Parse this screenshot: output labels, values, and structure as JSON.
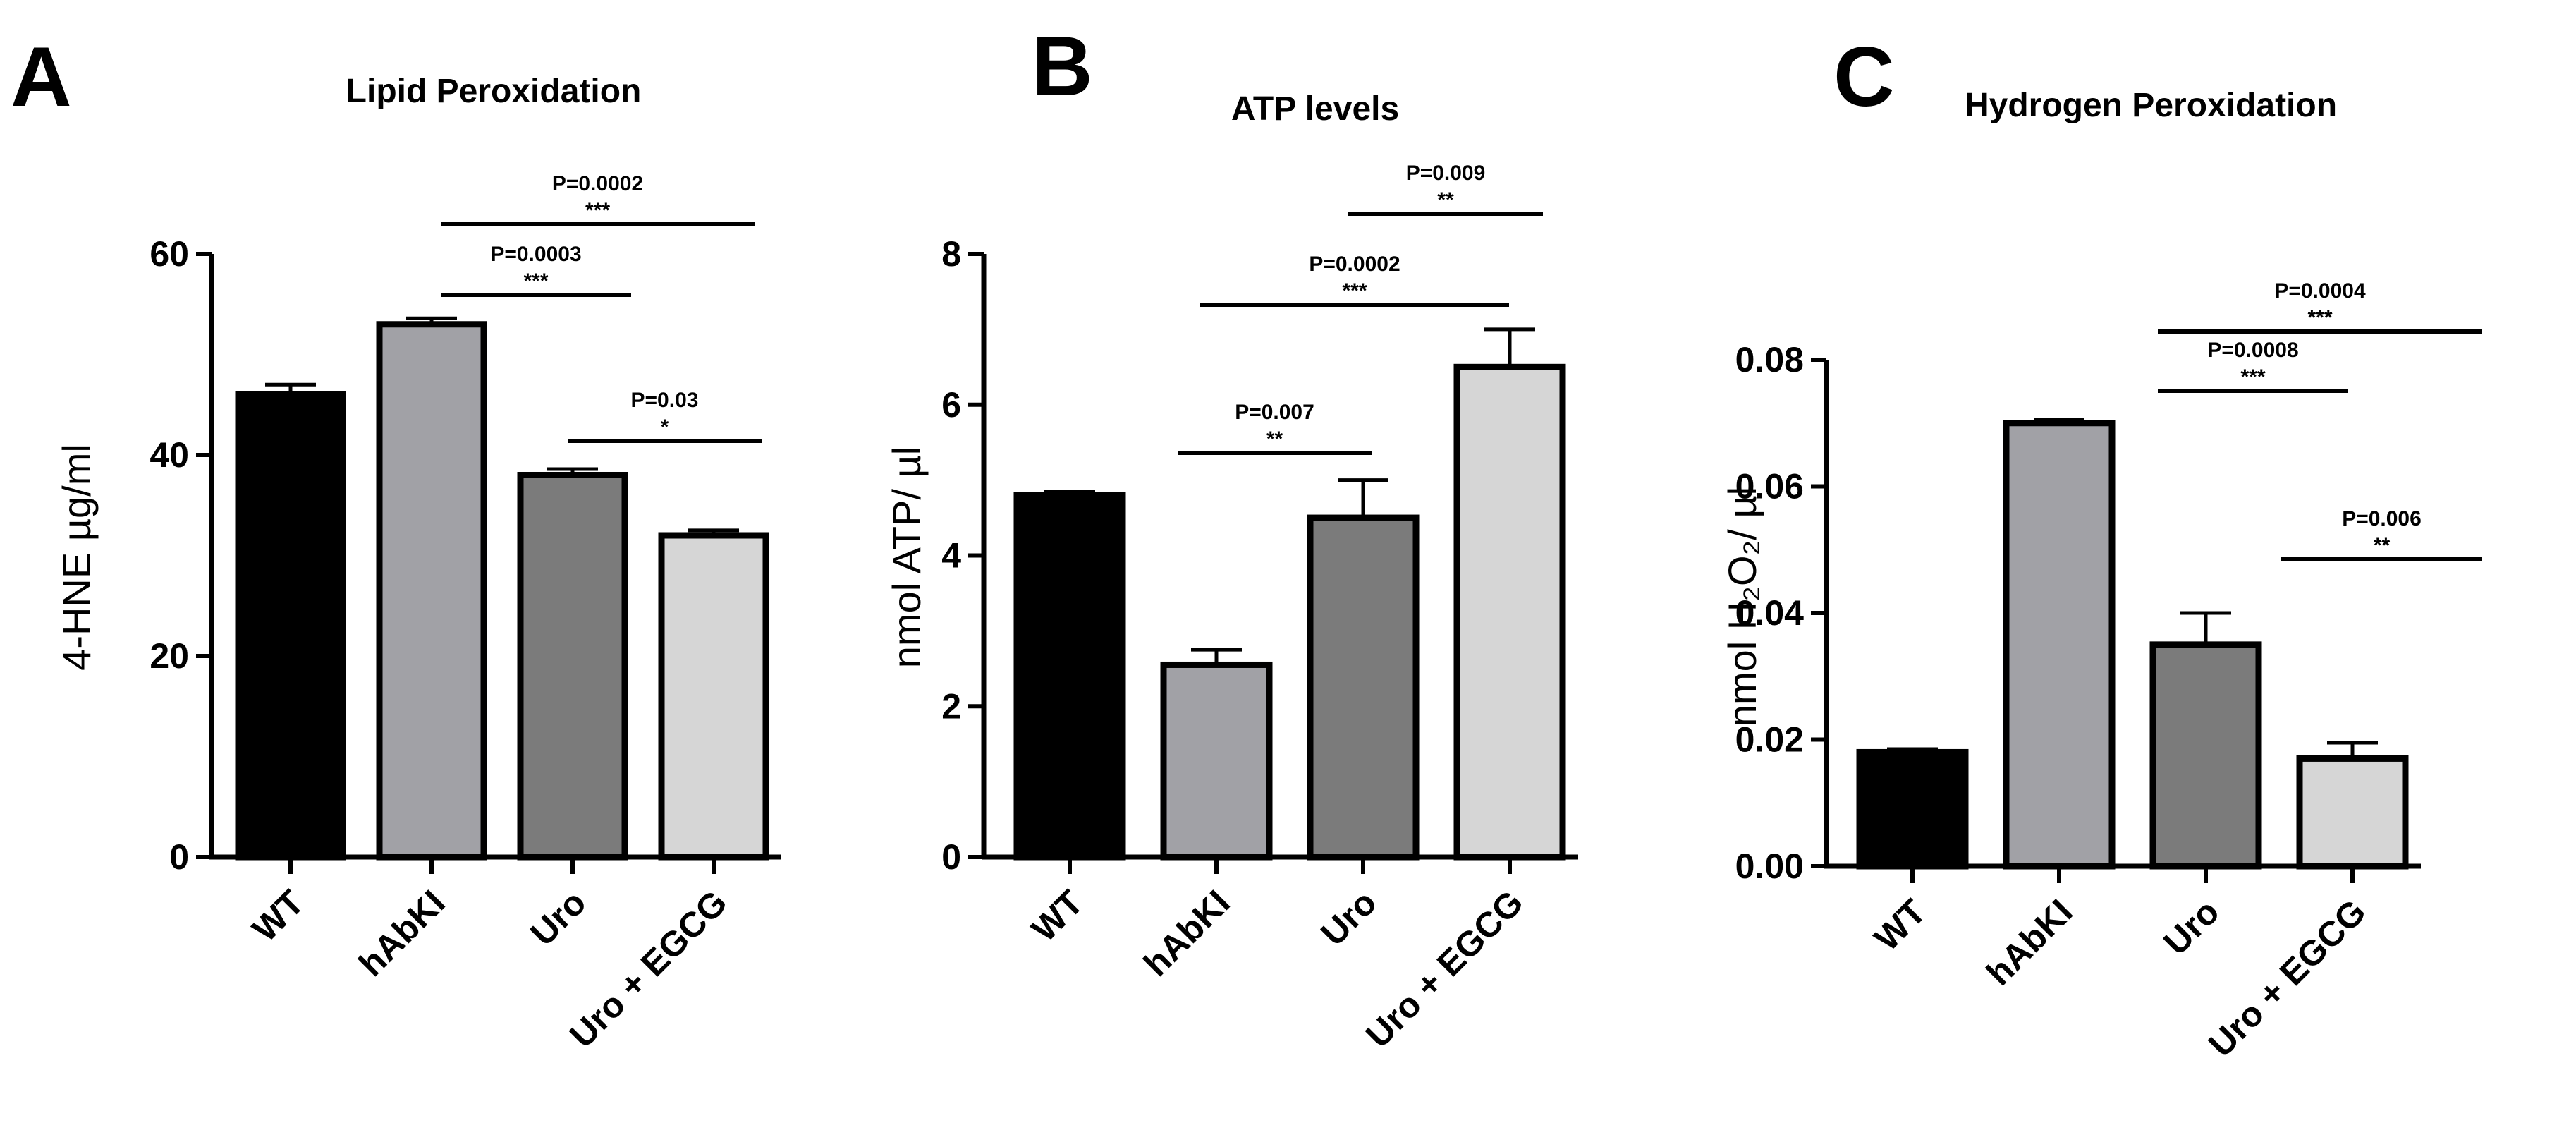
{
  "chart_data": [
    {
      "panel": "A",
      "type": "bar",
      "title": "Lipid Peroxidation",
      "ylabel": "4-HNE µg/ml",
      "xlabel": "",
      "ylim": [
        0,
        60
      ],
      "yticks": [
        "0",
        "20",
        "40",
        "60"
      ],
      "categories": [
        "WT",
        "hAbKI",
        "Uro",
        "Uro + EGCG"
      ],
      "values": [
        46,
        53,
        38,
        32
      ],
      "errors": [
        1.0,
        0.6,
        0.6,
        0.5
      ],
      "colors": [
        "#000000",
        "#a1a1a6",
        "#7b7b7b",
        "#d6d6d6"
      ],
      "comparisons": [
        {
          "from": 1,
          "to": 3,
          "p": "P=0.0002",
          "stars": "***"
        },
        {
          "from": 1,
          "to": 2,
          "p": "P=0.0003",
          "stars": "***"
        },
        {
          "from": 2,
          "to": 3,
          "p": "P=0.03",
          "stars": "*"
        }
      ]
    },
    {
      "panel": "B",
      "type": "bar",
      "title": "ATP levels",
      "ylabel": "nmol ATP/ µl",
      "xlabel": "",
      "ylim": [
        0,
        8
      ],
      "yticks": [
        "0",
        "2",
        "4",
        "6",
        "8"
      ],
      "categories": [
        "WT",
        "hAbKI",
        "Uro",
        "Uro + EGCG"
      ],
      "values": [
        4.8,
        2.55,
        4.5,
        6.5
      ],
      "errors": [
        0.05,
        0.2,
        0.5,
        0.5
      ],
      "colors": [
        "#000000",
        "#a1a1a6",
        "#7b7b7b",
        "#d6d6d6"
      ],
      "comparisons": [
        {
          "from": 2,
          "to": 3,
          "p": "P=0.009",
          "stars": "**"
        },
        {
          "from": 1,
          "to": 3,
          "p": "P=0.0002",
          "stars": "***"
        },
        {
          "from": 1,
          "to": 2,
          "p": "P=0.007",
          "stars": "**"
        }
      ]
    },
    {
      "panel": "C",
      "type": "bar",
      "title": "Hydrogen Peroxidation",
      "ylabel": "nmol H₂O₂/ µl",
      "xlabel": "",
      "ylim": [
        0,
        0.08
      ],
      "yticks": [
        "0.00",
        "0.02",
        "0.04",
        "0.06",
        "0.08"
      ],
      "categories": [
        "WT",
        "hAbKI",
        "Uro",
        "Uro + EGCG"
      ],
      "values": [
        0.018,
        0.07,
        0.035,
        0.017
      ],
      "errors": [
        0.0005,
        0.0005,
        0.005,
        0.0025
      ],
      "colors": [
        "#000000",
        "#a1a1a6",
        "#7b7b7b",
        "#d6d6d6"
      ],
      "comparisons": [
        {
          "from": 1,
          "to": 3,
          "p": "P=0.0004",
          "stars": "***"
        },
        {
          "from": 1,
          "to": 2,
          "p": "P=0.0008",
          "stars": "***"
        },
        {
          "from": 2,
          "to": 3,
          "p": "P=0.006",
          "stars": "**"
        }
      ]
    }
  ]
}
